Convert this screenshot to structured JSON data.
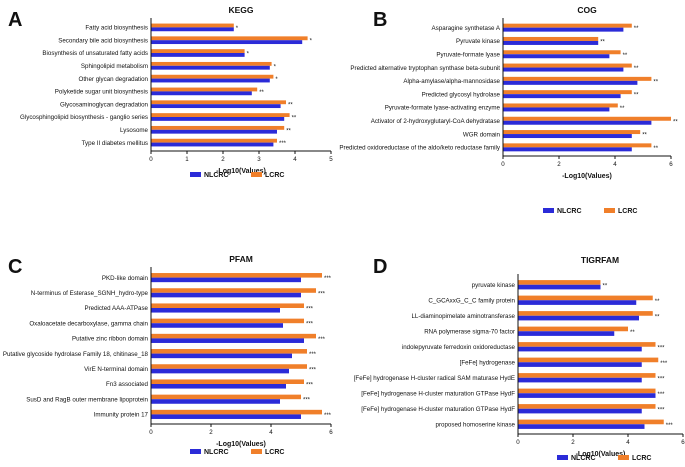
{
  "colors": {
    "nlcrc": "#2B2BD8",
    "lcrc": "#F07F2A",
    "axis": "#111111"
  },
  "chart_data": [
    {
      "panel": "A",
      "type": "bar",
      "orientation": "horizontal",
      "title": "KEGG",
      "xlabel": "-Log10(Values)",
      "xlim": [
        0,
        5
      ],
      "xticks": [
        0,
        1,
        2,
        3,
        4,
        5
      ],
      "legend": [
        "NLCRC",
        "LCRC"
      ],
      "categories": [
        "Fatty acid biosynthesis",
        "Secondary bile acid biosynthesis",
        "Biosynthesis of unsaturated fatty acids",
        "Sphingolipid metabolism",
        "Other glycan degradation",
        "Polyketide sugar unit biosynthesis",
        "Glycosaminoglycan degradation",
        "Glycosphingolipid biosynthesis - ganglio series",
        "Lysosome",
        "Type II diabetes mellitus"
      ],
      "series": [
        {
          "name": "NLCRC",
          "values": [
            2.3,
            4.2,
            2.6,
            3.3,
            3.3,
            2.8,
            3.6,
            3.7,
            3.5,
            3.4
          ]
        },
        {
          "name": "LCRC",
          "values": [
            2.3,
            4.35,
            2.6,
            3.35,
            3.4,
            2.95,
            3.75,
            3.85,
            3.7,
            3.5
          ]
        }
      ],
      "significance": [
        "*",
        "*",
        "*",
        "*",
        "*",
        "**",
        "**",
        "**",
        "**",
        "***"
      ]
    },
    {
      "panel": "B",
      "type": "bar",
      "orientation": "horizontal",
      "title": "COG",
      "xlabel": "-Log10(Values)",
      "xlim": [
        0,
        6
      ],
      "xticks": [
        0,
        2,
        4,
        6
      ],
      "legend": [
        "NLCRC",
        "LCRC"
      ],
      "categories": [
        "Asparagine synthetase A",
        "Pyruvate kinase",
        "Pyruvate-formate lyase",
        "Predicted alternative tryptophan synthase beta-subunit",
        "Alpha-amylase/alpha-mannosidase",
        "Predicted glycosyl hydrolase",
        "Pyruvate-formate lyase-activating enzyme",
        "Activator of 2-hydroxyglutaryl-CoA dehydratase",
        "WGR domain",
        "Predicted oxidoreductase of the aldo/keto reductase family"
      ],
      "series": [
        {
          "name": "NLCRC",
          "values": [
            4.3,
            3.4,
            3.8,
            4.3,
            4.8,
            4.2,
            3.8,
            5.3,
            4.6,
            4.6
          ]
        },
        {
          "name": "LCRC",
          "values": [
            4.6,
            3.4,
            4.2,
            4.6,
            5.3,
            4.6,
            4.1,
            6.0,
            4.9,
            5.3
          ]
        }
      ],
      "significance": [
        "**",
        "**",
        "**",
        "**",
        "**",
        "**",
        "**",
        "**",
        "**",
        "**"
      ]
    },
    {
      "panel": "C",
      "type": "bar",
      "orientation": "horizontal",
      "title": "PFAM",
      "xlabel": "-Log10(Values)",
      "xlim": [
        0,
        6
      ],
      "xticks": [
        0,
        2,
        4,
        6
      ],
      "legend": [
        "NLCRC",
        "LCRC"
      ],
      "categories": [
        "PKD-like domain",
        "N-terminus of Esterase_SGNH_hydro-type",
        "Predicted AAA-ATPase",
        "Oxaloacetate decarboxylase, gamma chain",
        "Putative zinc ribbon domain",
        "Putative glycoside hydrolase Family 18, chitinase_18",
        "VirE N-terminal domain",
        "Fn3 associated",
        "SusD and RagB outer membrane lipoprotein",
        "Immunity protein 17"
      ],
      "series": [
        {
          "name": "NLCRC",
          "values": [
            5.0,
            5.0,
            4.3,
            4.4,
            5.1,
            4.7,
            4.6,
            4.5,
            4.3,
            5.0
          ]
        },
        {
          "name": "LCRC",
          "values": [
            5.7,
            5.5,
            5.1,
            5.1,
            5.5,
            5.2,
            5.2,
            5.1,
            5.0,
            5.7
          ]
        }
      ],
      "significance": [
        "***",
        "***",
        "***",
        "***",
        "***",
        "***",
        "***",
        "***",
        "***",
        "***"
      ]
    },
    {
      "panel": "D",
      "type": "bar",
      "orientation": "horizontal",
      "title": "TIGRFAM",
      "xlabel": "-Log10(Values)",
      "xlim": [
        0,
        6
      ],
      "xticks": [
        0,
        2,
        4,
        6
      ],
      "legend": [
        "NLCRC",
        "LCRC"
      ],
      "categories": [
        "pyruvate kinase",
        "C_GCAxxG_C_C family protein",
        "LL-diaminopimelate aminotransferase",
        "RNA polymerase sigma-70 factor",
        "indolepyruvate ferredoxin oxidoreductase",
        "[FeFe] hydrogenase",
        "[FeFe] hydrogenase H-cluster radical SAM maturase HydE",
        "[FeFe] hydrogenase H-cluster maturation GTPase HydF",
        "[FeFe] hydrogenase H-cluster maturation GTPase HydF",
        "proposed homoserine kinase"
      ],
      "series": [
        {
          "name": "NLCRC",
          "values": [
            3.0,
            4.3,
            4.4,
            3.5,
            4.5,
            4.5,
            4.5,
            5.0,
            4.5,
            4.6
          ]
        },
        {
          "name": "LCRC",
          "values": [
            3.0,
            4.9,
            4.9,
            4.0,
            5.0,
            5.1,
            5.0,
            5.0,
            5.0,
            5.3
          ]
        }
      ],
      "significance": [
        "**",
        "**",
        "**",
        "**",
        "***",
        "***",
        "***",
        "***",
        "***",
        "***"
      ]
    }
  ]
}
